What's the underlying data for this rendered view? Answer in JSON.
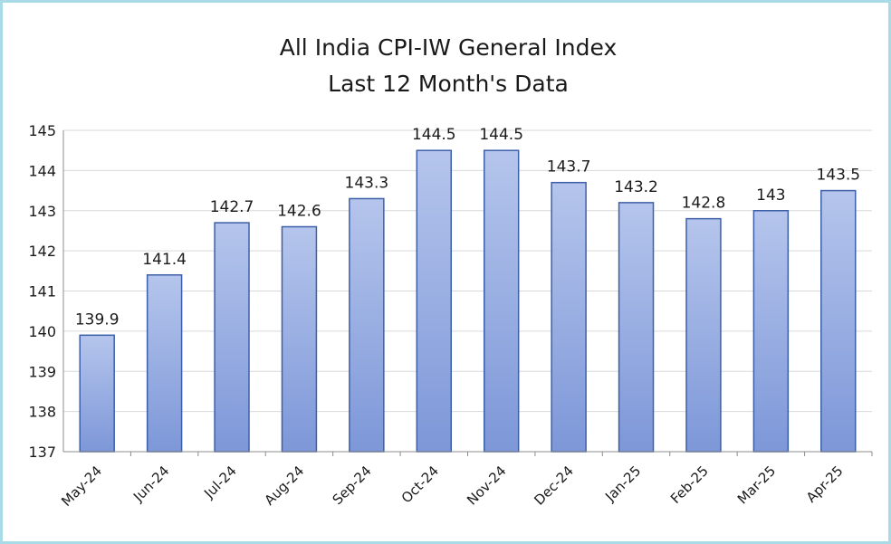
{
  "chart_data": {
    "type": "bar",
    "title": "All India CPI-IW General Index",
    "subtitle": "Last 12 Month's Data",
    "categories": [
      "May-24",
      "Jun-24",
      "Jul-24",
      "Aug-24",
      "Sep-24",
      "Oct-24",
      "Nov-24",
      "Dec-24",
      "Jan-25",
      "Feb-25",
      "Mar-25",
      "Apr-25"
    ],
    "values": [
      139.9,
      141.4,
      142.7,
      142.6,
      143.3,
      144.5,
      144.5,
      143.7,
      143.2,
      142.8,
      143,
      143.5
    ],
    "data_labels": [
      "139.9",
      "141.4",
      "142.7",
      "142.6",
      "143.3",
      "144.5",
      "144.5",
      "143.7",
      "143.2",
      "142.8",
      "143",
      "143.5"
    ],
    "yticks": [
      "137",
      "138",
      "139",
      "140",
      "141",
      "142",
      "143",
      "144",
      "145"
    ],
    "ylim": [
      137,
      145
    ],
    "grid": true,
    "legend": "none",
    "colors": {
      "bar_top": "#b5c5ec",
      "bar_bottom": "#7d97d8",
      "bar_edge": "#3d5fa8",
      "grid": "#d9d9d9",
      "frame": "#a9dbe6"
    }
  }
}
